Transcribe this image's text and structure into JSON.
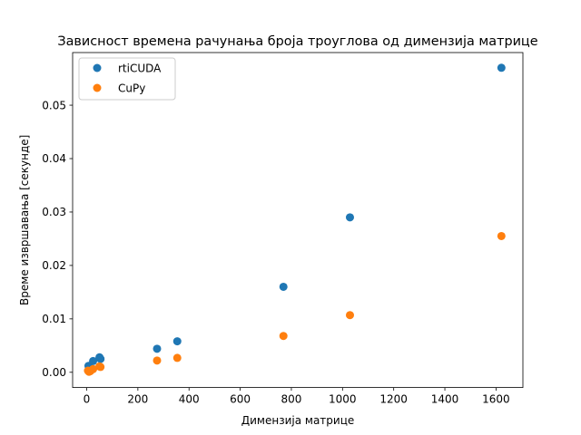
{
  "chart_data": {
    "type": "scatter",
    "title": "Зависност времена рачунања броја троуглова од димензија матрице",
    "xlabel": "Димензија матрице",
    "ylabel": "Време извршавања [секунде]",
    "xlim": [
      -55,
      1705
    ],
    "ylim": [
      -0.00285,
      0.05985
    ],
    "xticks": [
      0,
      200,
      400,
      600,
      800,
      1000,
      1200,
      1400,
      1600
    ],
    "xtick_labels": [
      "0",
      "200",
      "400",
      "600",
      "800",
      "1000",
      "1200",
      "1400",
      "1600"
    ],
    "yticks": [
      0.0,
      0.01,
      0.02,
      0.03,
      0.04,
      0.05
    ],
    "ytick_labels": [
      "0.00",
      "0.01",
      "0.02",
      "0.03",
      "0.04",
      "0.05"
    ],
    "grid": false,
    "legend": "top-left",
    "series": [
      {
        "name": "rtiCUDA",
        "color": "#1f77b4",
        "points": [
          [
            7,
            0.0012
          ],
          [
            12,
            0.0008
          ],
          [
            25,
            0.0021
          ],
          [
            50,
            0.0028
          ],
          [
            54,
            0.0025
          ],
          [
            275,
            0.0044
          ],
          [
            354,
            0.0058
          ],
          [
            769,
            0.016
          ],
          [
            1029,
            0.029
          ],
          [
            1621,
            0.057
          ]
        ]
      },
      {
        "name": "CuPy",
        "color": "#ff7f0e",
        "points": [
          [
            5,
            0.0003
          ],
          [
            9,
            0.0001
          ],
          [
            14,
            0.0002
          ],
          [
            25,
            0.0006
          ],
          [
            50,
            0.0011
          ],
          [
            54,
            0.001
          ],
          [
            275,
            0.0022
          ],
          [
            354,
            0.0027
          ],
          [
            769,
            0.0068
          ],
          [
            1029,
            0.0107
          ],
          [
            1621,
            0.0255
          ]
        ]
      }
    ]
  }
}
